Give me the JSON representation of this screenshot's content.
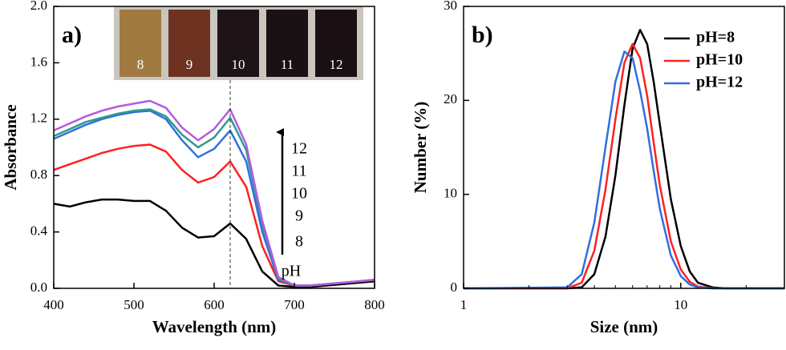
{
  "chart_data": [
    {
      "type": "line",
      "panel_label": "a)",
      "xlabel": "Wavelength (nm)",
      "ylabel": "Absorbance",
      "xlim": [
        400,
        800
      ],
      "ylim": [
        0,
        2.0
      ],
      "xticks": [
        400,
        500,
        600,
        700,
        800
      ],
      "yticks": [
        {
          "value": 0,
          "label": "0.0"
        },
        0.4,
        0.8,
        1.2,
        1.6,
        {
          "value": 2.0,
          "label": "2.0"
        }
      ],
      "x": [
        400,
        420,
        440,
        460,
        480,
        500,
        520,
        540,
        560,
        580,
        600,
        620,
        640,
        660,
        680,
        700,
        720,
        740,
        760,
        780,
        800
      ],
      "series": [
        {
          "color": "#000000",
          "values": [
            0.6,
            0.58,
            0.61,
            0.63,
            0.63,
            0.62,
            0.62,
            0.55,
            0.43,
            0.36,
            0.37,
            0.46,
            0.35,
            0.12,
            0.02,
            0.01,
            0.01,
            0.02,
            0.03,
            0.04,
            0.05
          ]
        },
        {
          "color": "#ff2020",
          "values": [
            0.84,
            0.88,
            0.92,
            0.96,
            0.99,
            1.01,
            1.02,
            0.97,
            0.84,
            0.75,
            0.79,
            0.9,
            0.72,
            0.3,
            0.05,
            0.02,
            0.02,
            0.03,
            0.04,
            0.05,
            0.06
          ]
        },
        {
          "color": "#2f6fe0",
          "values": [
            1.06,
            1.11,
            1.16,
            1.2,
            1.23,
            1.25,
            1.26,
            1.2,
            1.05,
            0.93,
            0.99,
            1.12,
            0.9,
            0.4,
            0.06,
            0.02,
            0.02,
            0.03,
            0.04,
            0.05,
            0.06
          ]
        },
        {
          "color": "#2e9a8a",
          "values": [
            1.08,
            1.13,
            1.18,
            1.21,
            1.24,
            1.26,
            1.27,
            1.22,
            1.09,
            1.0,
            1.07,
            1.21,
            0.98,
            0.45,
            0.07,
            0.02,
            0.02,
            0.03,
            0.04,
            0.05,
            0.06
          ]
        },
        {
          "color": "#b45ae0",
          "values": [
            1.12,
            1.17,
            1.22,
            1.26,
            1.29,
            1.31,
            1.33,
            1.28,
            1.14,
            1.05,
            1.13,
            1.27,
            1.02,
            0.48,
            0.08,
            0.02,
            0.02,
            0.03,
            0.04,
            0.05,
            0.06
          ]
        }
      ],
      "vline": 620,
      "annotations": [
        "12",
        "11",
        "10",
        "9",
        "8",
        "pH"
      ],
      "inset_labels": [
        "8",
        "9",
        "10",
        "11",
        "12"
      ]
    },
    {
      "type": "line",
      "panel_label": "b)",
      "xlabel": "Size (nm)",
      "ylabel": "Number (%)",
      "log_x": true,
      "legend": "upper right",
      "xlim": [
        1,
        30
      ],
      "ylim": [
        0,
        30
      ],
      "xticks": [
        1,
        10
      ],
      "yticks": [
        0,
        10,
        20,
        30
      ],
      "x": [
        1,
        3,
        3.5,
        4,
        4.5,
        5,
        5.5,
        6,
        6.5,
        7,
        7.5,
        8,
        9,
        10,
        11,
        12,
        14,
        16,
        20,
        30
      ],
      "series": [
        {
          "name": "pH=8",
          "color": "#000000",
          "values": [
            0,
            0,
            0.1,
            1.5,
            5.5,
            12,
            19.5,
            25.5,
            27.5,
            26,
            22,
            17.5,
            9.5,
            4.5,
            1.8,
            0.6,
            0.1,
            0,
            0,
            0
          ]
        },
        {
          "name": "pH=10",
          "color": "#ff2020",
          "values": [
            0,
            0,
            0.6,
            4,
            10.5,
            18,
            24,
            26,
            24.5,
            20.5,
            15.5,
            11,
            5,
            2,
            0.7,
            0.2,
            0,
            0,
            0,
            0
          ]
        },
        {
          "name": "pH=12",
          "color": "#2f6fe0",
          "values": [
            0,
            0.1,
            1.5,
            7,
            15,
            22,
            25.2,
            24.5,
            21,
            17,
            12.5,
            8.5,
            3.5,
            1.3,
            0.4,
            0.1,
            0,
            0,
            0,
            0
          ]
        }
      ]
    }
  ]
}
